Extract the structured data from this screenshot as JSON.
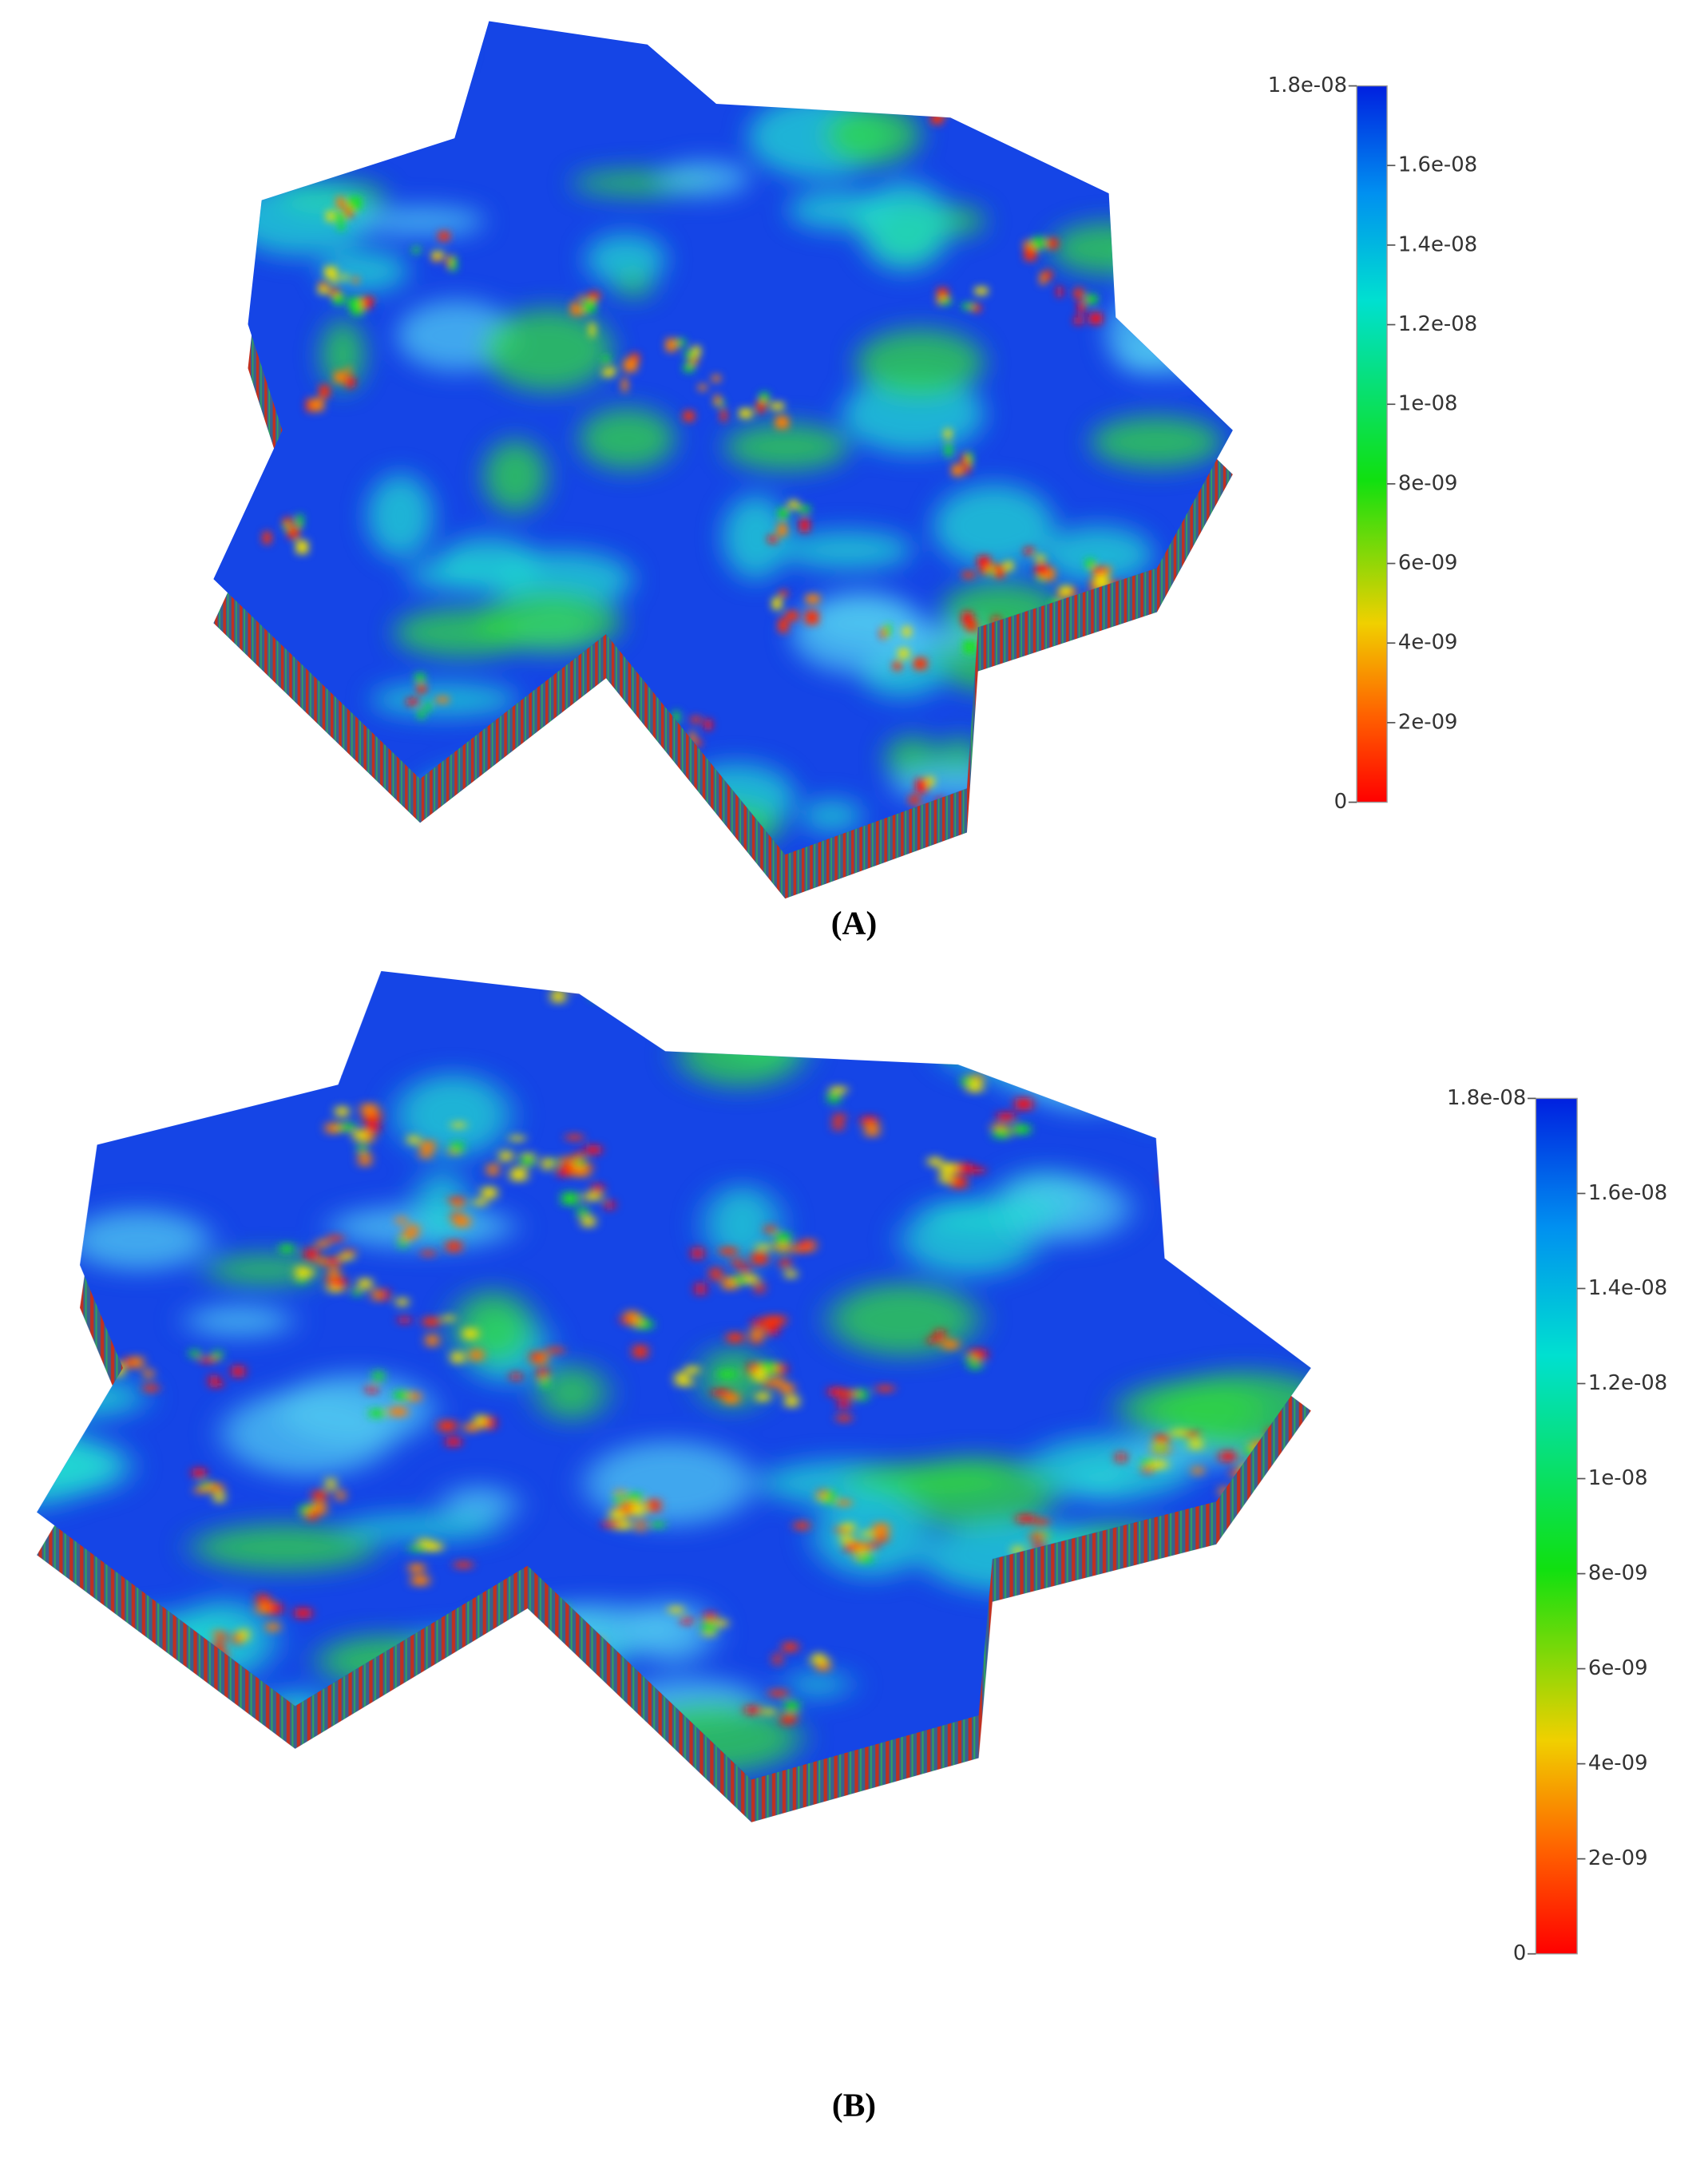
{
  "panels": [
    {
      "label": "(A)",
      "colorbar": {
        "lim": [
          0,
          1.8e-08
        ],
        "ticks": [
          0,
          {
            "value": 2e-09,
            "label": "2e-09"
          },
          {
            "value": 4e-09,
            "label": "4e-09"
          },
          {
            "value": 6e-09,
            "label": "6e-09"
          },
          {
            "value": 8e-09,
            "label": "8e-09"
          },
          {
            "value": 1e-08,
            "label": "1e-08"
          },
          {
            "value": 1.2e-08,
            "label": "1.2e-08"
          },
          {
            "value": 1.4e-08,
            "label": "1.4e-08"
          },
          {
            "value": 1.6e-08,
            "label": "1.6e-08"
          },
          {
            "value": 1.8e-08,
            "label": "1.8e-08"
          }
        ]
      }
    },
    {
      "label": "(B)",
      "colorbar": {
        "lim": [
          0,
          1.8e-08
        ],
        "ticks": [
          0,
          {
            "value": 2e-09,
            "label": "2e-09"
          },
          {
            "value": 4e-09,
            "label": "4e-09"
          },
          {
            "value": 6e-09,
            "label": "6e-09"
          },
          {
            "value": 8e-09,
            "label": "8e-09"
          },
          {
            "value": 1e-08,
            "label": "1e-08"
          },
          {
            "value": 1.2e-08,
            "label": "1.2e-08"
          },
          {
            "value": 1.4e-08,
            "label": "1.4e-08"
          },
          {
            "value": 1.6e-08,
            "label": "1.6e-08"
          },
          {
            "value": 1.8e-08,
            "label": "1.8e-08"
          }
        ]
      }
    }
  ]
}
